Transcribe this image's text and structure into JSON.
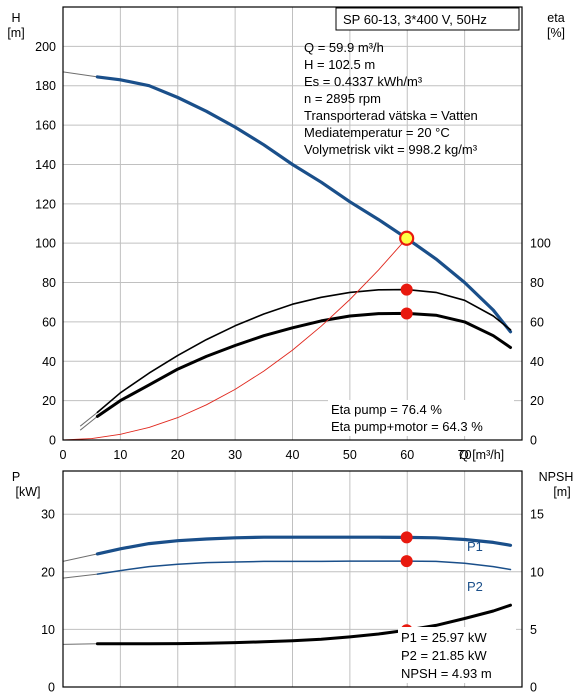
{
  "colors": {
    "blue": "#1a4f8a",
    "black": "#000000",
    "red_line": "#e0281e",
    "point_red": "#e8190f",
    "point_yellow": "#ffff44",
    "grid": "#c0c0c0",
    "ext_line": "#6e6e6e"
  },
  "chart_data": [
    {
      "type": "line",
      "title": "SP 60-13, 3*400 V, 50Hz",
      "x_label_left_top": "H",
      "x_unit_left_top": "[m]",
      "y_left_label": "H",
      "y_left_unit": "[m]",
      "y_right_label": "eta",
      "y_right_unit": "[%]",
      "x_label": "Q [m³/h]",
      "xlim": [
        0,
        80
      ],
      "ylim_left": [
        0,
        220
      ],
      "ylim_right": [
        0,
        220
      ],
      "x_ticks": [
        "0",
        "10",
        "20",
        "30",
        "40",
        "50",
        "60",
        "70"
      ],
      "y_left_ticks": [
        "0",
        "20",
        "40",
        "60",
        "80",
        "100",
        "120",
        "140",
        "160",
        "180",
        "200"
      ],
      "y_right_ticks": [
        "0",
        "20",
        "40",
        "60",
        "80",
        "100"
      ],
      "grid": true,
      "info_lines": [
        "Q = 59.9 m³/h",
        "H = 102.5 m",
        "Es = 0.4337 kWh/m³",
        "n = 2895 rpm",
        "Transporterad vätska = Vatten",
        "Mediatemperatur = 20 °C",
        "Volymetrisk vikt = 998.2 kg/m³"
      ],
      "eta_lines": [
        "Eta pump = 76.4 %",
        "Eta pump+motor = 64.3 %"
      ],
      "series": [
        {
          "key": "H",
          "axis": "left",
          "ext": [
            [
              0,
              187
            ],
            [
              6,
              184.5
            ]
          ],
          "x": [
            6,
            10,
            15,
            20,
            25,
            30,
            35,
            40,
            45,
            50,
            55,
            59.9,
            65,
            70,
            75,
            78
          ],
          "y": [
            184.5,
            183,
            180,
            174,
            167,
            159,
            150,
            140,
            131,
            121,
            112,
            102.5,
            92,
            80,
            66,
            55
          ]
        },
        {
          "key": "eta_pump",
          "axis": "right",
          "ext": [
            [
              3,
              7
            ],
            [
              6,
              14
            ]
          ],
          "x": [
            6,
            10,
            15,
            20,
            25,
            30,
            35,
            40,
            45,
            50,
            55,
            59.9,
            65,
            70,
            75,
            78
          ],
          "y": [
            14,
            24,
            34,
            43,
            51,
            58,
            64,
            69,
            72.5,
            75,
            76.3,
            76.4,
            75,
            71,
            63,
            56
          ]
        },
        {
          "key": "eta_pump_motor",
          "axis": "right",
          "ext": [
            [
              3,
              5
            ],
            [
              6,
              12
            ]
          ],
          "x": [
            6,
            10,
            15,
            20,
            25,
            30,
            35,
            40,
            45,
            50,
            55,
            59.9,
            65,
            70,
            75,
            78
          ],
          "y": [
            12,
            20,
            28,
            36,
            42.5,
            48,
            53,
            57,
            60.5,
            63,
            64.2,
            64.3,
            63.4,
            60,
            53,
            47
          ]
        },
        {
          "key": "system_curve",
          "axis": "left",
          "x": [
            0,
            5,
            10,
            15,
            20,
            25,
            30,
            35,
            40,
            45,
            50,
            55,
            59.9
          ],
          "y": [
            0,
            0.7,
            2.9,
            6.4,
            11.4,
            17.9,
            25.7,
            35,
            45.7,
            57.8,
            71.4,
            86.4,
            102.5
          ]
        }
      ],
      "points": [
        {
          "key": "duty",
          "x": 59.9,
          "y": 102.5,
          "style": "yellow"
        },
        {
          "key": "eta_pump_pt",
          "x": 59.9,
          "y": 76.4,
          "style": "red"
        },
        {
          "key": "eta_total_pt",
          "x": 59.9,
          "y": 64.3,
          "style": "red"
        }
      ]
    },
    {
      "type": "line",
      "y_left_label": "P",
      "y_left_unit": "[kW]",
      "y_right_label": "NPSH",
      "y_right_unit": "[m]",
      "xlim": [
        0,
        80
      ],
      "ylim_left": [
        0,
        37.5
      ],
      "ylim_right": [
        0,
        18.75
      ],
      "y_left_ticks": [
        "0",
        "10",
        "20",
        "30"
      ],
      "y_right_ticks": [
        "0",
        "5",
        "10",
        "15"
      ],
      "grid": true,
      "result_lines": [
        "P1 = 25.97 kW",
        "P2 = 21.85 kW",
        "NPSH = 4.93 m"
      ],
      "series": [
        {
          "key": "P1",
          "name": "P1",
          "axis": "left",
          "ext": [
            [
              0,
              21.8
            ],
            [
              6,
              23.1
            ]
          ],
          "x": [
            6,
            10,
            15,
            20,
            25,
            30,
            35,
            40,
            45,
            50,
            55,
            59.9,
            65,
            70,
            75,
            78
          ],
          "y": [
            23.1,
            24.0,
            24.9,
            25.4,
            25.7,
            25.9,
            26.0,
            26.0,
            26.0,
            26.0,
            26.0,
            25.97,
            25.9,
            25.6,
            25.1,
            24.6
          ]
        },
        {
          "key": "P2",
          "name": "P2",
          "axis": "left",
          "ext": [
            [
              0,
              18.9
            ],
            [
              6,
              19.6
            ]
          ],
          "x": [
            6,
            10,
            15,
            20,
            25,
            30,
            35,
            40,
            45,
            50,
            55,
            59.9,
            65,
            70,
            75,
            78
          ],
          "y": [
            19.6,
            20.2,
            20.9,
            21.3,
            21.6,
            21.7,
            21.8,
            21.8,
            21.8,
            21.85,
            21.85,
            21.85,
            21.8,
            21.5,
            20.9,
            20.4
          ]
        },
        {
          "key": "NPSH",
          "axis": "right",
          "ext": [
            [
              0,
              3.7
            ],
            [
              6,
              3.75
            ]
          ],
          "x": [
            6,
            10,
            15,
            20,
            25,
            30,
            35,
            40,
            45,
            50,
            55,
            59.9,
            65,
            70,
            75,
            78
          ],
          "y": [
            3.75,
            3.75,
            3.76,
            3.77,
            3.8,
            3.85,
            3.92,
            4.02,
            4.15,
            4.35,
            4.6,
            4.93,
            5.35,
            5.95,
            6.6,
            7.1
          ]
        }
      ],
      "points": [
        {
          "key": "P1_pt",
          "x": 59.9,
          "y": 25.97,
          "axis": "left"
        },
        {
          "key": "P2_pt",
          "x": 59.9,
          "y": 21.85,
          "axis": "left"
        },
        {
          "key": "NPSH_pt",
          "x": 59.9,
          "y": 4.93,
          "axis": "right"
        }
      ]
    }
  ]
}
